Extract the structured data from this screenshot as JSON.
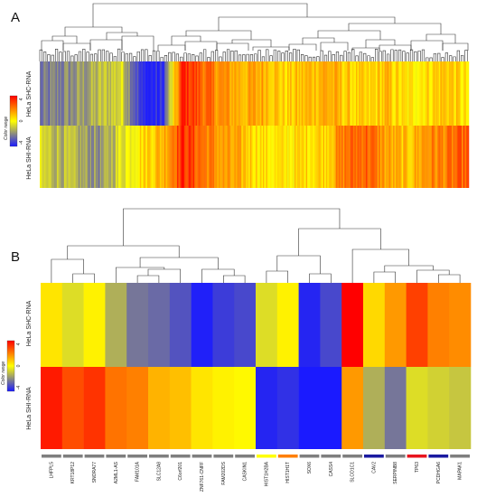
{
  "panelA": {
    "letter": "A",
    "rows": [
      "HeLa SHC-RNA",
      "HeLa SHI-RNA"
    ],
    "legend": {
      "title": "Color range",
      "ticks": [
        "4",
        "0",
        "-4"
      ]
    }
  },
  "panelB": {
    "letter": "B",
    "rows": [
      "HeLa SHC-RNA",
      "HeLa SHI-RNA"
    ],
    "legend": {
      "title": "Color range",
      "ticks": [
        "4",
        "0",
        "-4"
      ]
    },
    "genes": [
      "LHFPL5",
      "KRT18P12",
      "SNORA77",
      "A2ML1-AS",
      "FAM101A",
      "SLC12A8",
      "C6orf201",
      "ZNF761-CNFF",
      "FAM202DS",
      "CASKIN1",
      "HIST1H2BA",
      "HIST1H1T",
      "SOX6",
      "CASS4",
      "SLCO1C1",
      "CAV2",
      "SERPINB8",
      "TP63",
      "PCDHGA6",
      "MAPAK1"
    ]
  },
  "chart_data": [
    {
      "type": "heatmap",
      "panel": "A",
      "rows": [
        "HeLa SHC-RNA",
        "HeLa SHI-RNA"
      ],
      "colorscale": {
        "min": -4,
        "max": 4,
        "colors": [
          "#1a1aff",
          "#ffff00",
          "#ff0000"
        ]
      },
      "segments_note": "",
      "shc_profile": [
        -2.6,
        -2.2,
        -1.8,
        -1.2,
        -0.6,
        -3.9,
        -3.8,
        3.6,
        2.4,
        1.6,
        1.2,
        1.4,
        0.6,
        1.0,
        1.4,
        0.8,
        0.4,
        1.0,
        0.2,
        0.6,
        1.0,
        0.2
      ],
      "shi_profile": [
        -0.8,
        -1.2,
        -1.6,
        -2.0,
        -0.4,
        0.6,
        1.2,
        3.4,
        2.2,
        1.4,
        1.0,
        0.4,
        0.2,
        0.6,
        0.8,
        2.2,
        2.6,
        1.4,
        0.8,
        1.8,
        2.0,
        2.6
      ]
    },
    {
      "type": "heatmap",
      "panel": "B",
      "rows": [
        "HeLa SHC-RNA",
        "HeLa SHI-RNA"
      ],
      "columns": [
        "LHFPL5",
        "KRT18P12",
        "SNORA77",
        "A2ML1-AS",
        "FAM101A",
        "SLC12A8",
        "C6orf201",
        "ZNF761-CNFF",
        "FAM202DS",
        "CASKIN1",
        "HIST1H2BA",
        "HIST1H1T",
        "SOX6",
        "CASS4",
        "SLCO1C1",
        "CAV2",
        "SERPINB8",
        "TP63",
        "PCDHGA6",
        "MAPAK1"
      ],
      "values": [
        [
          0.4,
          -0.6,
          0.2,
          -1.4,
          -2.4,
          -2.6,
          -3.0,
          -3.9,
          -3.4,
          -3.2,
          -0.6,
          0.2,
          -3.8,
          -3.2,
          4.0,
          0.6,
          1.6,
          3.0,
          2.0,
          1.8
        ],
        [
          3.6,
          2.8,
          3.2,
          2.2,
          2.0,
          1.2,
          1.0,
          0.4,
          0.2,
          0.1,
          -3.8,
          -3.6,
          -4.0,
          -4.0,
          1.6,
          -1.4,
          -2.4,
          -0.6,
          -0.8,
          -1.0
        ]
      ],
      "colorscale": {
        "min": -4,
        "max": 4,
        "colors": [
          "#1a1aff",
          "#ffff00",
          "#ff0000"
        ]
      },
      "group_bar_colors": [
        "#7f7f7f",
        "#7f7f7f",
        "#7f7f7f",
        "#7f7f7f",
        "#7f7f7f",
        "#7f7f7f",
        "#7f7f7f",
        "#7f7f7f",
        "#7f7f7f",
        "#7f7f7f",
        "#ffff00",
        "#ff7f00",
        "#7f7f7f",
        "#7f7f7f",
        "#7f7f7f",
        "#1a1aa0",
        "#7f7f7f",
        "#e8141e",
        "#1a1aa0",
        "#7f7f7f"
      ]
    }
  ]
}
